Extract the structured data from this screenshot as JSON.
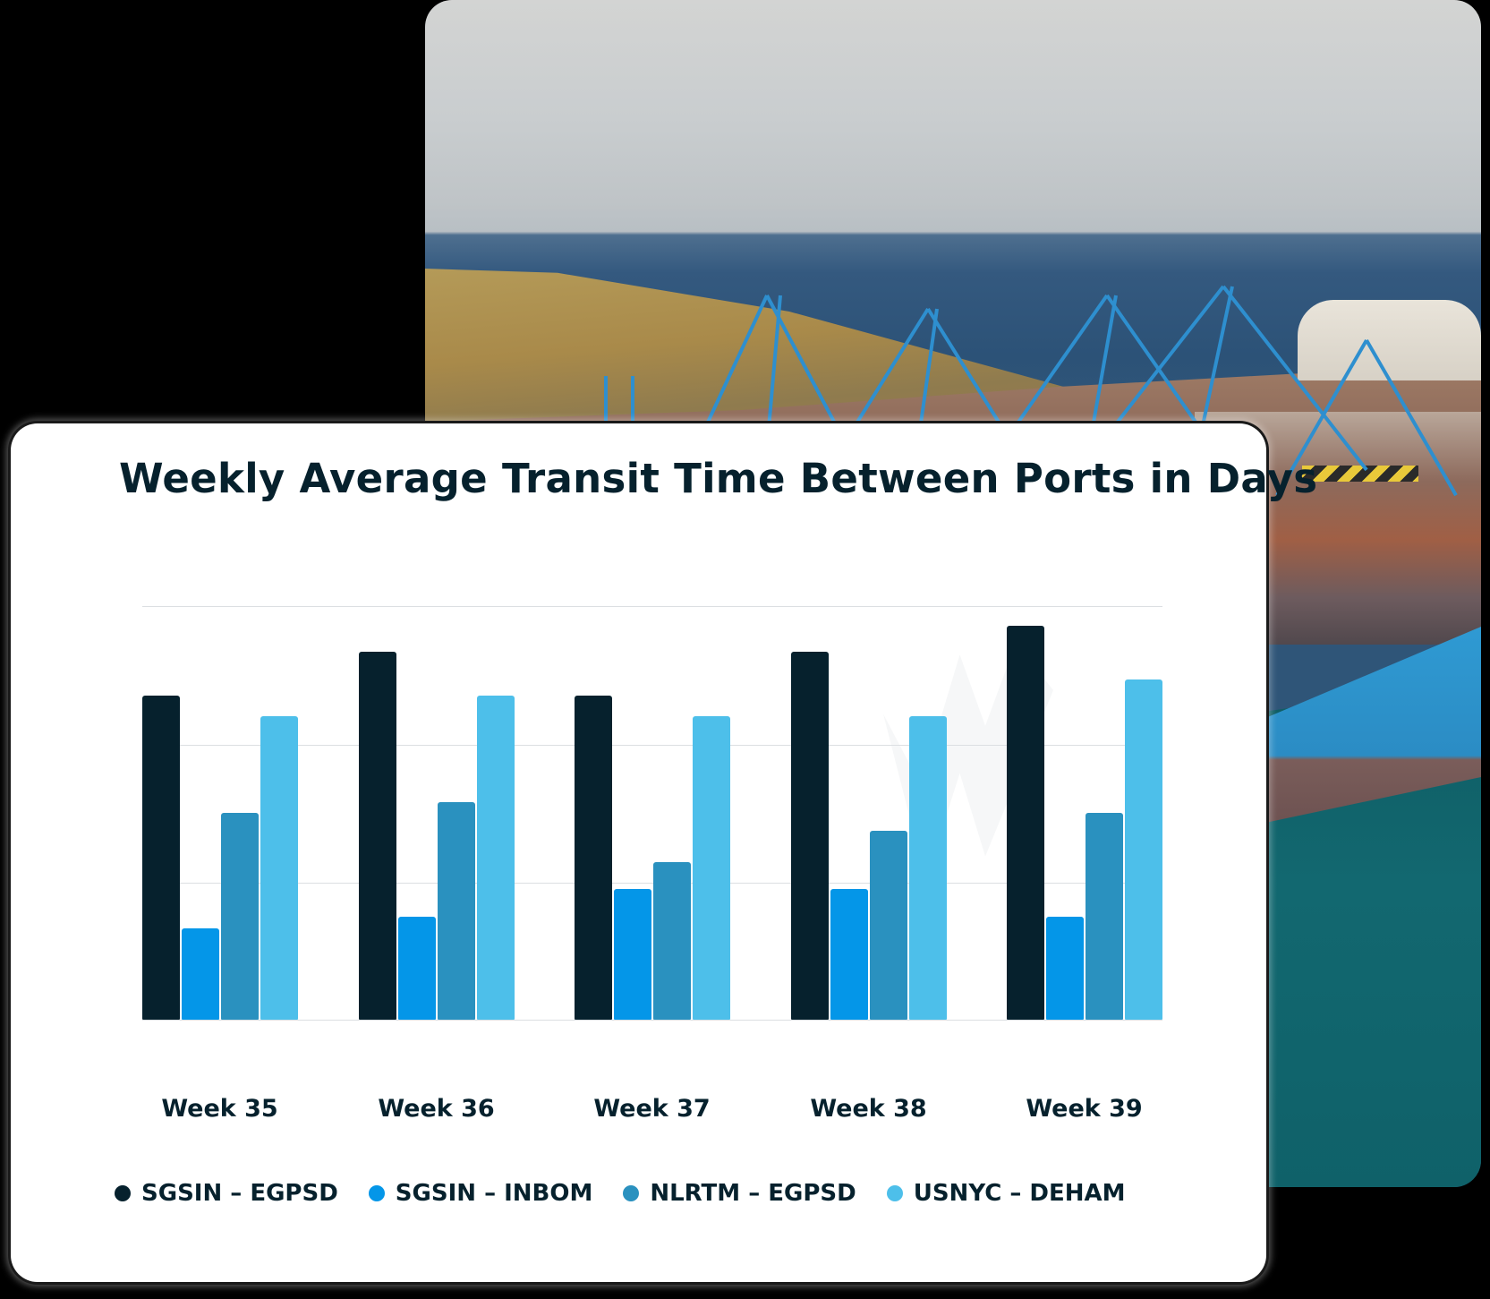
{
  "chart_data": {
    "type": "bar",
    "title": "Weekly Average Transit Time Between Ports in Days",
    "xlabel": "",
    "ylabel": "",
    "y_units_note": "no y-axis tick labels visible; values expressed in gridline intervals (3 intervals to top gridline)",
    "ylim": [
      0,
      3
    ],
    "grid": true,
    "legend_position": "bottom",
    "categories": [
      "Week 35",
      "Week 36",
      "Week 37",
      "Week 38",
      "Week 39"
    ],
    "series": [
      {
        "name": "SGSIN – EGPSD",
        "color": "#06212D",
        "values": [
          2.35,
          2.67,
          2.35,
          2.67,
          2.86
        ]
      },
      {
        "name": "SGSIN – INBOM",
        "color": "#0496E8",
        "values": [
          0.66,
          0.75,
          0.95,
          0.95,
          0.75
        ]
      },
      {
        "name": "NLRTM – EGPSD",
        "color": "#2A91BF",
        "values": [
          1.5,
          1.58,
          1.14,
          1.37,
          1.5
        ]
      },
      {
        "name": "USNYC – DEHAM",
        "color": "#4DBFEA",
        "values": [
          2.2,
          2.35,
          2.2,
          2.2,
          2.47
        ]
      }
    ]
  },
  "card": {
    "title": "Weekly Average Transit Time Between Ports in Days"
  },
  "weeks": [
    "Week 35",
    "Week 36",
    "Week 37",
    "Week 38",
    "Week 39"
  ],
  "legend": [
    {
      "label": "SGSIN – EGPSD",
      "color": "#06212D"
    },
    {
      "label": "SGSIN – INBOM",
      "color": "#0496E8"
    },
    {
      "label": "NLRTM – EGPSD",
      "color": "#2A91BF"
    },
    {
      "label": "USNYC – DEHAM",
      "color": "#4DBFEA"
    }
  ],
  "photo": {
    "subject": "container-port-with-blue-cranes-and-ship"
  }
}
